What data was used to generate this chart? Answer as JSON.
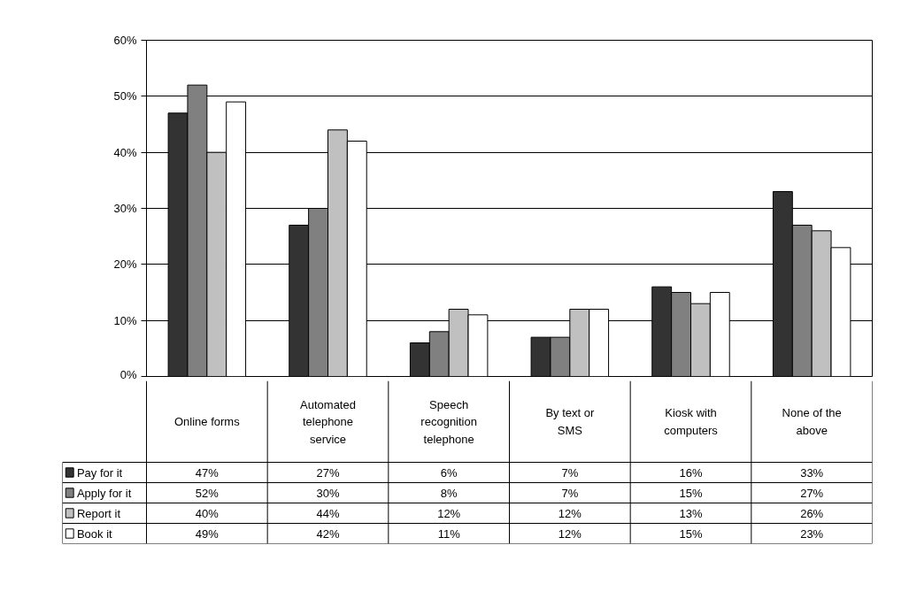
{
  "chart_data": {
    "type": "bar",
    "categories": [
      "Online forms",
      "Automated telephone service",
      "Speech recognition telephone",
      "By text or SMS",
      "Kiosk with computers",
      "None of the above"
    ],
    "series": [
      {
        "name": "Pay for it",
        "color": "#333333",
        "values": [
          47,
          27,
          6,
          7,
          16,
          33
        ],
        "value_labels": [
          "47%",
          "27%",
          "6%",
          "7%",
          "16%",
          "33%"
        ]
      },
      {
        "name": "Apply for it",
        "color": "#808080",
        "values": [
          52,
          30,
          8,
          7,
          15,
          27
        ],
        "value_labels": [
          "52%",
          "30%",
          "8%",
          "7%",
          "15%",
          "27%"
        ]
      },
      {
        "name": "Report it",
        "color": "#c0c0c0",
        "values": [
          40,
          44,
          12,
          12,
          13,
          26
        ],
        "value_labels": [
          "40%",
          "44%",
          "12%",
          "12%",
          "13%",
          "26%"
        ]
      },
      {
        "name": "Book it",
        "color": "#ffffff",
        "values": [
          49,
          42,
          11,
          12,
          15,
          23
        ],
        "value_labels": [
          "49%",
          "42%",
          "11%",
          "12%",
          "15%",
          "23%"
        ]
      }
    ],
    "ylim": [
      0,
      60
    ],
    "yticks": [
      {
        "value": 0,
        "label": "0%"
      },
      {
        "value": 10,
        "label": "10%"
      },
      {
        "value": 20,
        "label": "20%"
      },
      {
        "value": 30,
        "label": "30%"
      },
      {
        "value": 40,
        "label": "40%"
      },
      {
        "value": 50,
        "label": "50%"
      },
      {
        "value": 60,
        "label": "60%"
      }
    ],
    "grid": "y",
    "legend": "bottom"
  }
}
